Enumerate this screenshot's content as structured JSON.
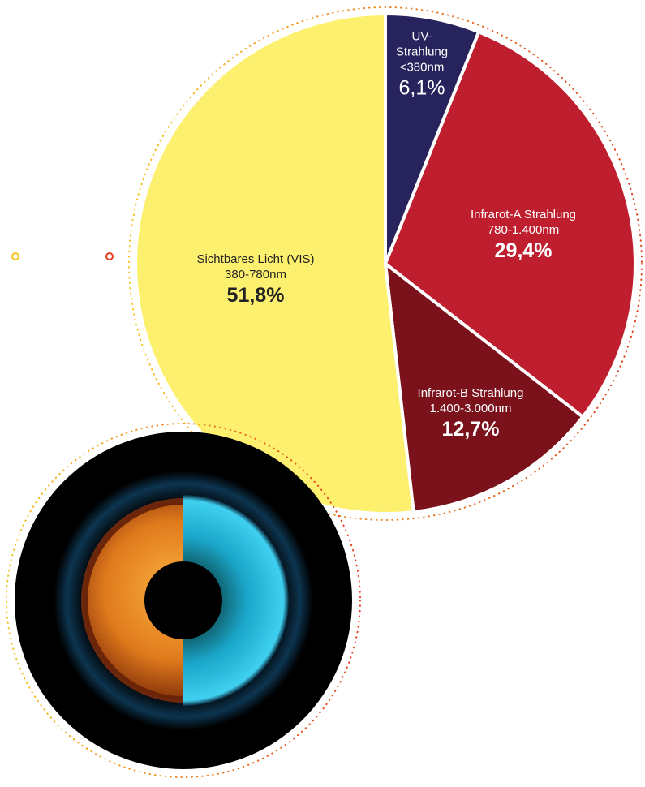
{
  "chart_data": {
    "type": "pie",
    "categories": [
      "UV-Strahlung",
      "Infrarot-A Strahlung",
      "Infrarot-B Strahlung",
      "Sichtbares Licht (VIS)"
    ],
    "ranges": [
      "<380nm",
      "780-1.400nm",
      "1.400-3.000nm",
      "380-780nm"
    ],
    "values": [
      6.1,
      29.4,
      12.7,
      51.8
    ],
    "value_labels": [
      "6,1%",
      "29,4%",
      "12,7%",
      "51,8%"
    ],
    "colors": [
      "#27235c",
      "#be1e2d",
      "#7a111b",
      "#fdf06f"
    ]
  }
}
